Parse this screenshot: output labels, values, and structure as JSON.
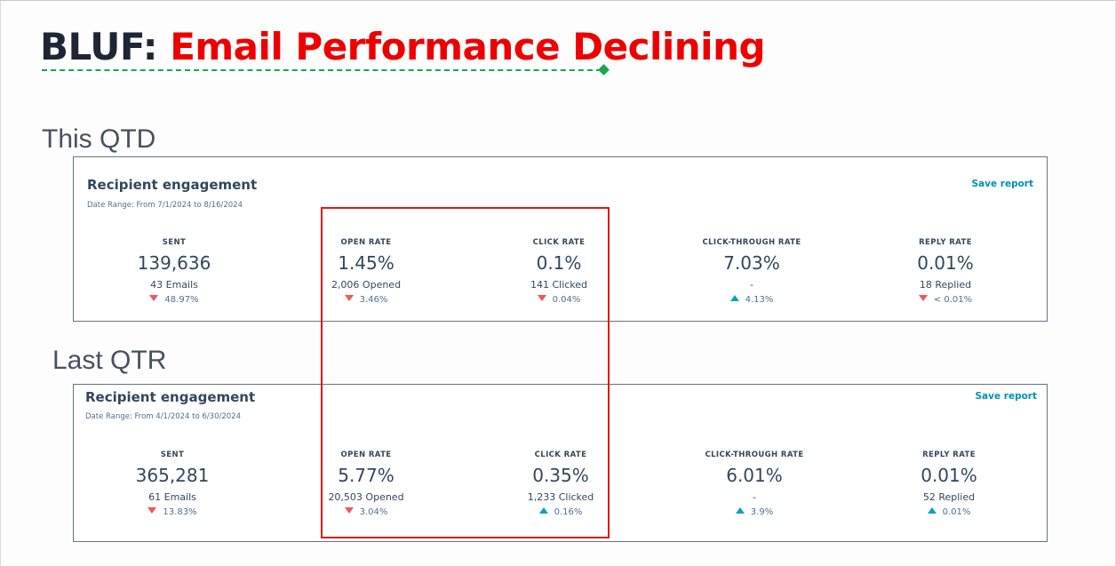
{
  "slide": {
    "title_prefix": "BLUF:",
    "title_main": "Email Performance Declining"
  },
  "sections": [
    {
      "label": "This QTD",
      "panel": {
        "title": "Recipient engagement",
        "date_range": "Date Range: From 7/1/2024 to 8/16/2024",
        "save_label": "Save report",
        "metrics": [
          {
            "label": "SENT",
            "value": "139,636",
            "sub": "43 Emails",
            "direction": "down",
            "change": "48.97%"
          },
          {
            "label": "OPEN RATE",
            "value": "1.45%",
            "sub": "2,006 Opened",
            "direction": "down",
            "change": "3.46%"
          },
          {
            "label": "CLICK RATE",
            "value": "0.1%",
            "sub": "141 Clicked",
            "direction": "down",
            "change": "0.04%"
          },
          {
            "label": "CLICK-THROUGH RATE",
            "value": "7.03%",
            "sub": "-",
            "direction": "up",
            "change": "4.13%"
          },
          {
            "label": "REPLY RATE",
            "value": "0.01%",
            "sub": "18 Replied",
            "direction": "down",
            "change": "< 0.01%"
          }
        ]
      }
    },
    {
      "label": "Last QTR",
      "panel": {
        "title": "Recipient engagement",
        "date_range": "Date Range: From 4/1/2024 to 6/30/2024",
        "save_label": "Save report",
        "metrics": [
          {
            "label": "SENT",
            "value": "365,281",
            "sub": "61 Emails",
            "direction": "down",
            "change": "13.83%"
          },
          {
            "label": "OPEN RATE",
            "value": "5.77%",
            "sub": "20,503 Opened",
            "direction": "down",
            "change": "3.04%"
          },
          {
            "label": "CLICK RATE",
            "value": "0.35%",
            "sub": "1,233 Clicked",
            "direction": "up",
            "change": "0.16%"
          },
          {
            "label": "CLICK-THROUGH RATE",
            "value": "6.01%",
            "sub": "-",
            "direction": "up",
            "change": "3.9%"
          },
          {
            "label": "REPLY RATE",
            "value": "0.01%",
            "sub": "52 Replied",
            "direction": "up",
            "change": "0.01%"
          }
        ]
      }
    }
  ],
  "colors": {
    "title_red": "#ee0000",
    "title_dark": "#1f2633",
    "underline_green": "#1aa64a",
    "highlight_red": "#e01818",
    "trend_down": "#f2545b",
    "trend_up": "#00a4bd",
    "link": "#0091ae"
  }
}
